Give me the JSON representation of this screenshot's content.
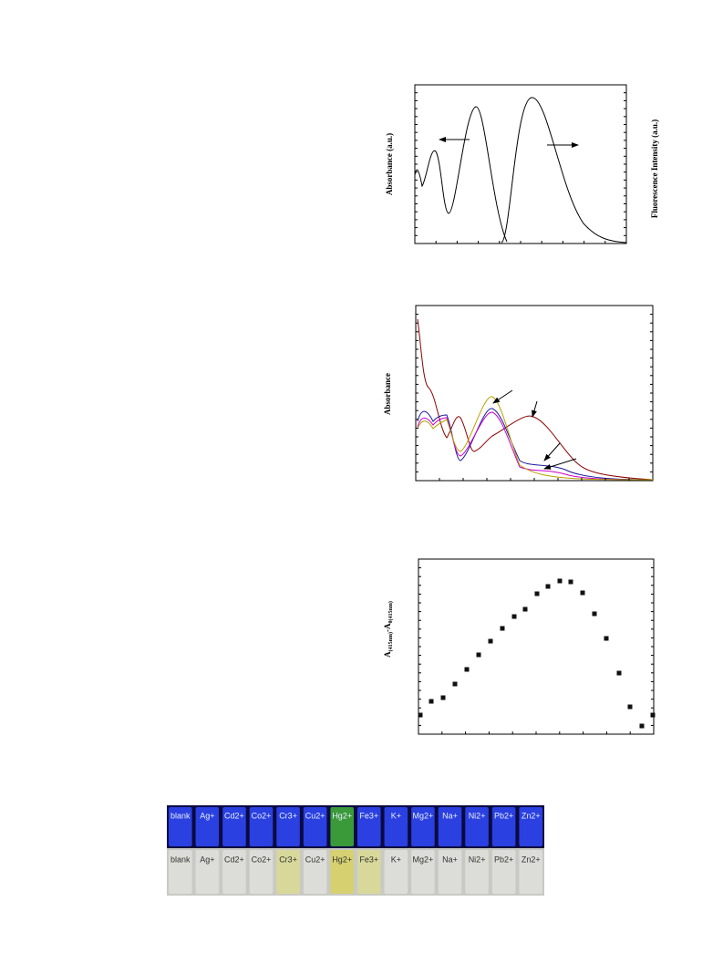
{
  "figures": [
    {
      "y_label_left": "Absorbance (a.u.)",
      "y_label_right": "Fluorescence Intensity (a.u.)"
    },
    {
      "y_label": "Absorbance"
    },
    {
      "y_label_parts": [
        "A",
        "(415nm)",
        "-A",
        "0(415nm)"
      ]
    }
  ],
  "photo": {
    "top_labels": [
      "blank",
      "Ag+",
      "Cd2+",
      "Co2+",
      "Cr3+",
      "Cu2+",
      "Hg2+",
      "Fe3+",
      "K+",
      "Mg2+",
      "Na+",
      "Ni2+",
      "Pb2+",
      "Zn2+"
    ],
    "bottom_labels": [
      "blank",
      "Ag+",
      "Cd2+",
      "Co2+",
      "Cr3+",
      "Cu2+",
      "Hg2+",
      "Fe3+",
      "K+",
      "Mg2+",
      "Na+",
      "Ni2+",
      "Pb2+",
      "Zn2+"
    ]
  }
}
